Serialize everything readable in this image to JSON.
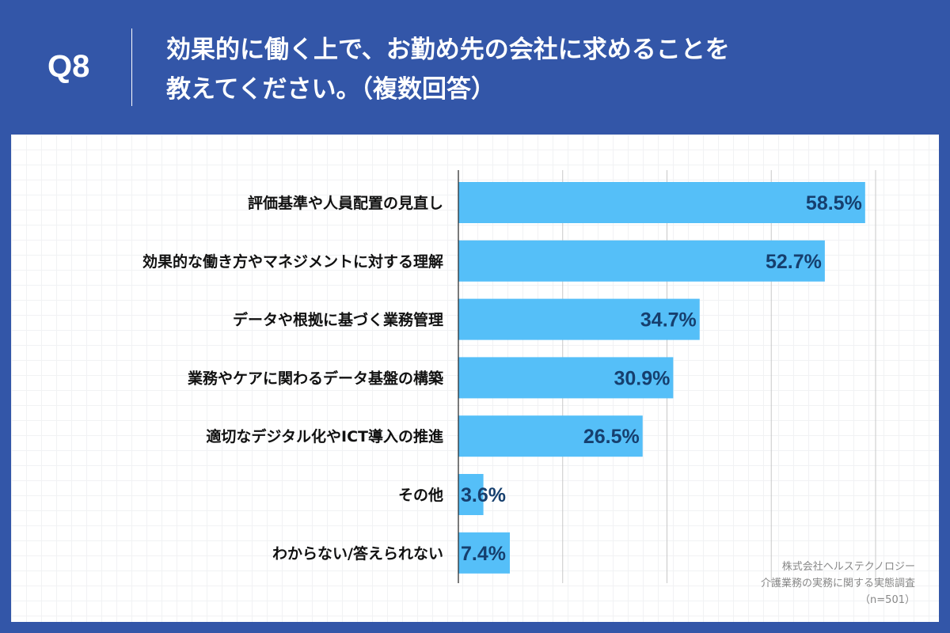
{
  "header": {
    "question_number": "Q8",
    "title_line1": "効果的に働く上で、お勤め先の会社に求めることを",
    "title_line2": "教えてください。（複数回答）"
  },
  "chart_data": {
    "type": "bar",
    "orientation": "horizontal",
    "categories": [
      "評価基準や人員配置の見直し",
      "効果的な働き方やマネジメントに対する理解",
      "データや根拠に基づく業務管理",
      "業務やケアに関わるデータ基盤の構築",
      "適切なデジタル化やICT導入の推進",
      "その他",
      "わからない/答えられない"
    ],
    "values": [
      58.5,
      52.7,
      34.7,
      30.9,
      26.5,
      3.6,
      7.4
    ],
    "data_labels": [
      "58.5%",
      "52.7%",
      "34.7%",
      "30.9%",
      "26.5%",
      "3.6%",
      "7.4%"
    ],
    "xlim": [
      0,
      60
    ],
    "gridlines": [
      15,
      30,
      45,
      60
    ],
    "grid": true,
    "colors": {
      "bar": "#55bff8",
      "label": "#163f6e"
    }
  },
  "footer": {
    "company": "株式会社ヘルステクノロジー",
    "survey": "介護業務の実務に関する実態調査",
    "sample": "（n=501）"
  }
}
